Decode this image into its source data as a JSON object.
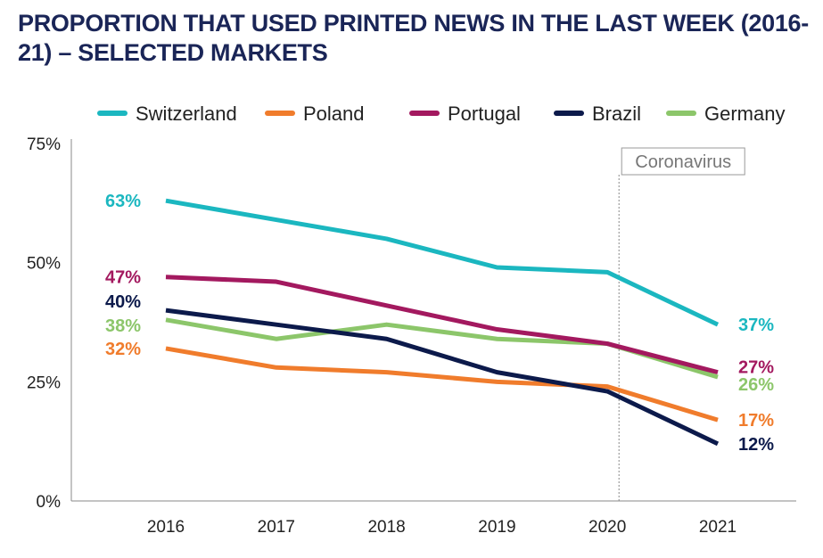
{
  "chart_data": {
    "type": "line",
    "title": "PROPORTION THAT USED PRINTED NEWS IN THE LAST WEEK (2016-21) – SELECTED MARKETS",
    "x": [
      "2016",
      "2017",
      "2018",
      "2019",
      "2020",
      "2021"
    ],
    "ylim": [
      0,
      75
    ],
    "yticks": [
      "0%",
      "25%",
      "50%",
      "75%"
    ],
    "ytick_values": [
      0,
      25,
      50,
      75
    ],
    "grid": false,
    "legend": "top",
    "annotation": {
      "label": "Coronavirus",
      "at": "2020"
    },
    "series": [
      {
        "name": "Switzerland",
        "color": "#1bb7c0",
        "values": [
          63,
          59,
          55,
          49,
          48,
          37
        ],
        "start_label": "63%",
        "end_label": "37%"
      },
      {
        "name": "Poland",
        "color": "#f07c2c",
        "values": [
          32,
          28,
          27,
          25,
          24,
          17
        ],
        "start_label": "32%",
        "end_label": "17%"
      },
      {
        "name": "Portugal",
        "color": "#a3195f",
        "values": [
          47,
          46,
          41,
          36,
          33,
          27
        ],
        "start_label": "47%",
        "end_label": "27%"
      },
      {
        "name": "Brazil",
        "color": "#0c1a4b",
        "values": [
          40,
          37,
          34,
          27,
          23,
          12
        ],
        "start_label": "40%",
        "end_label": "12%"
      },
      {
        "name": "Germany",
        "color": "#8cc66a",
        "values": [
          38,
          34,
          37,
          34,
          33,
          26
        ],
        "start_label": "38%",
        "end_label": "26%"
      }
    ]
  }
}
